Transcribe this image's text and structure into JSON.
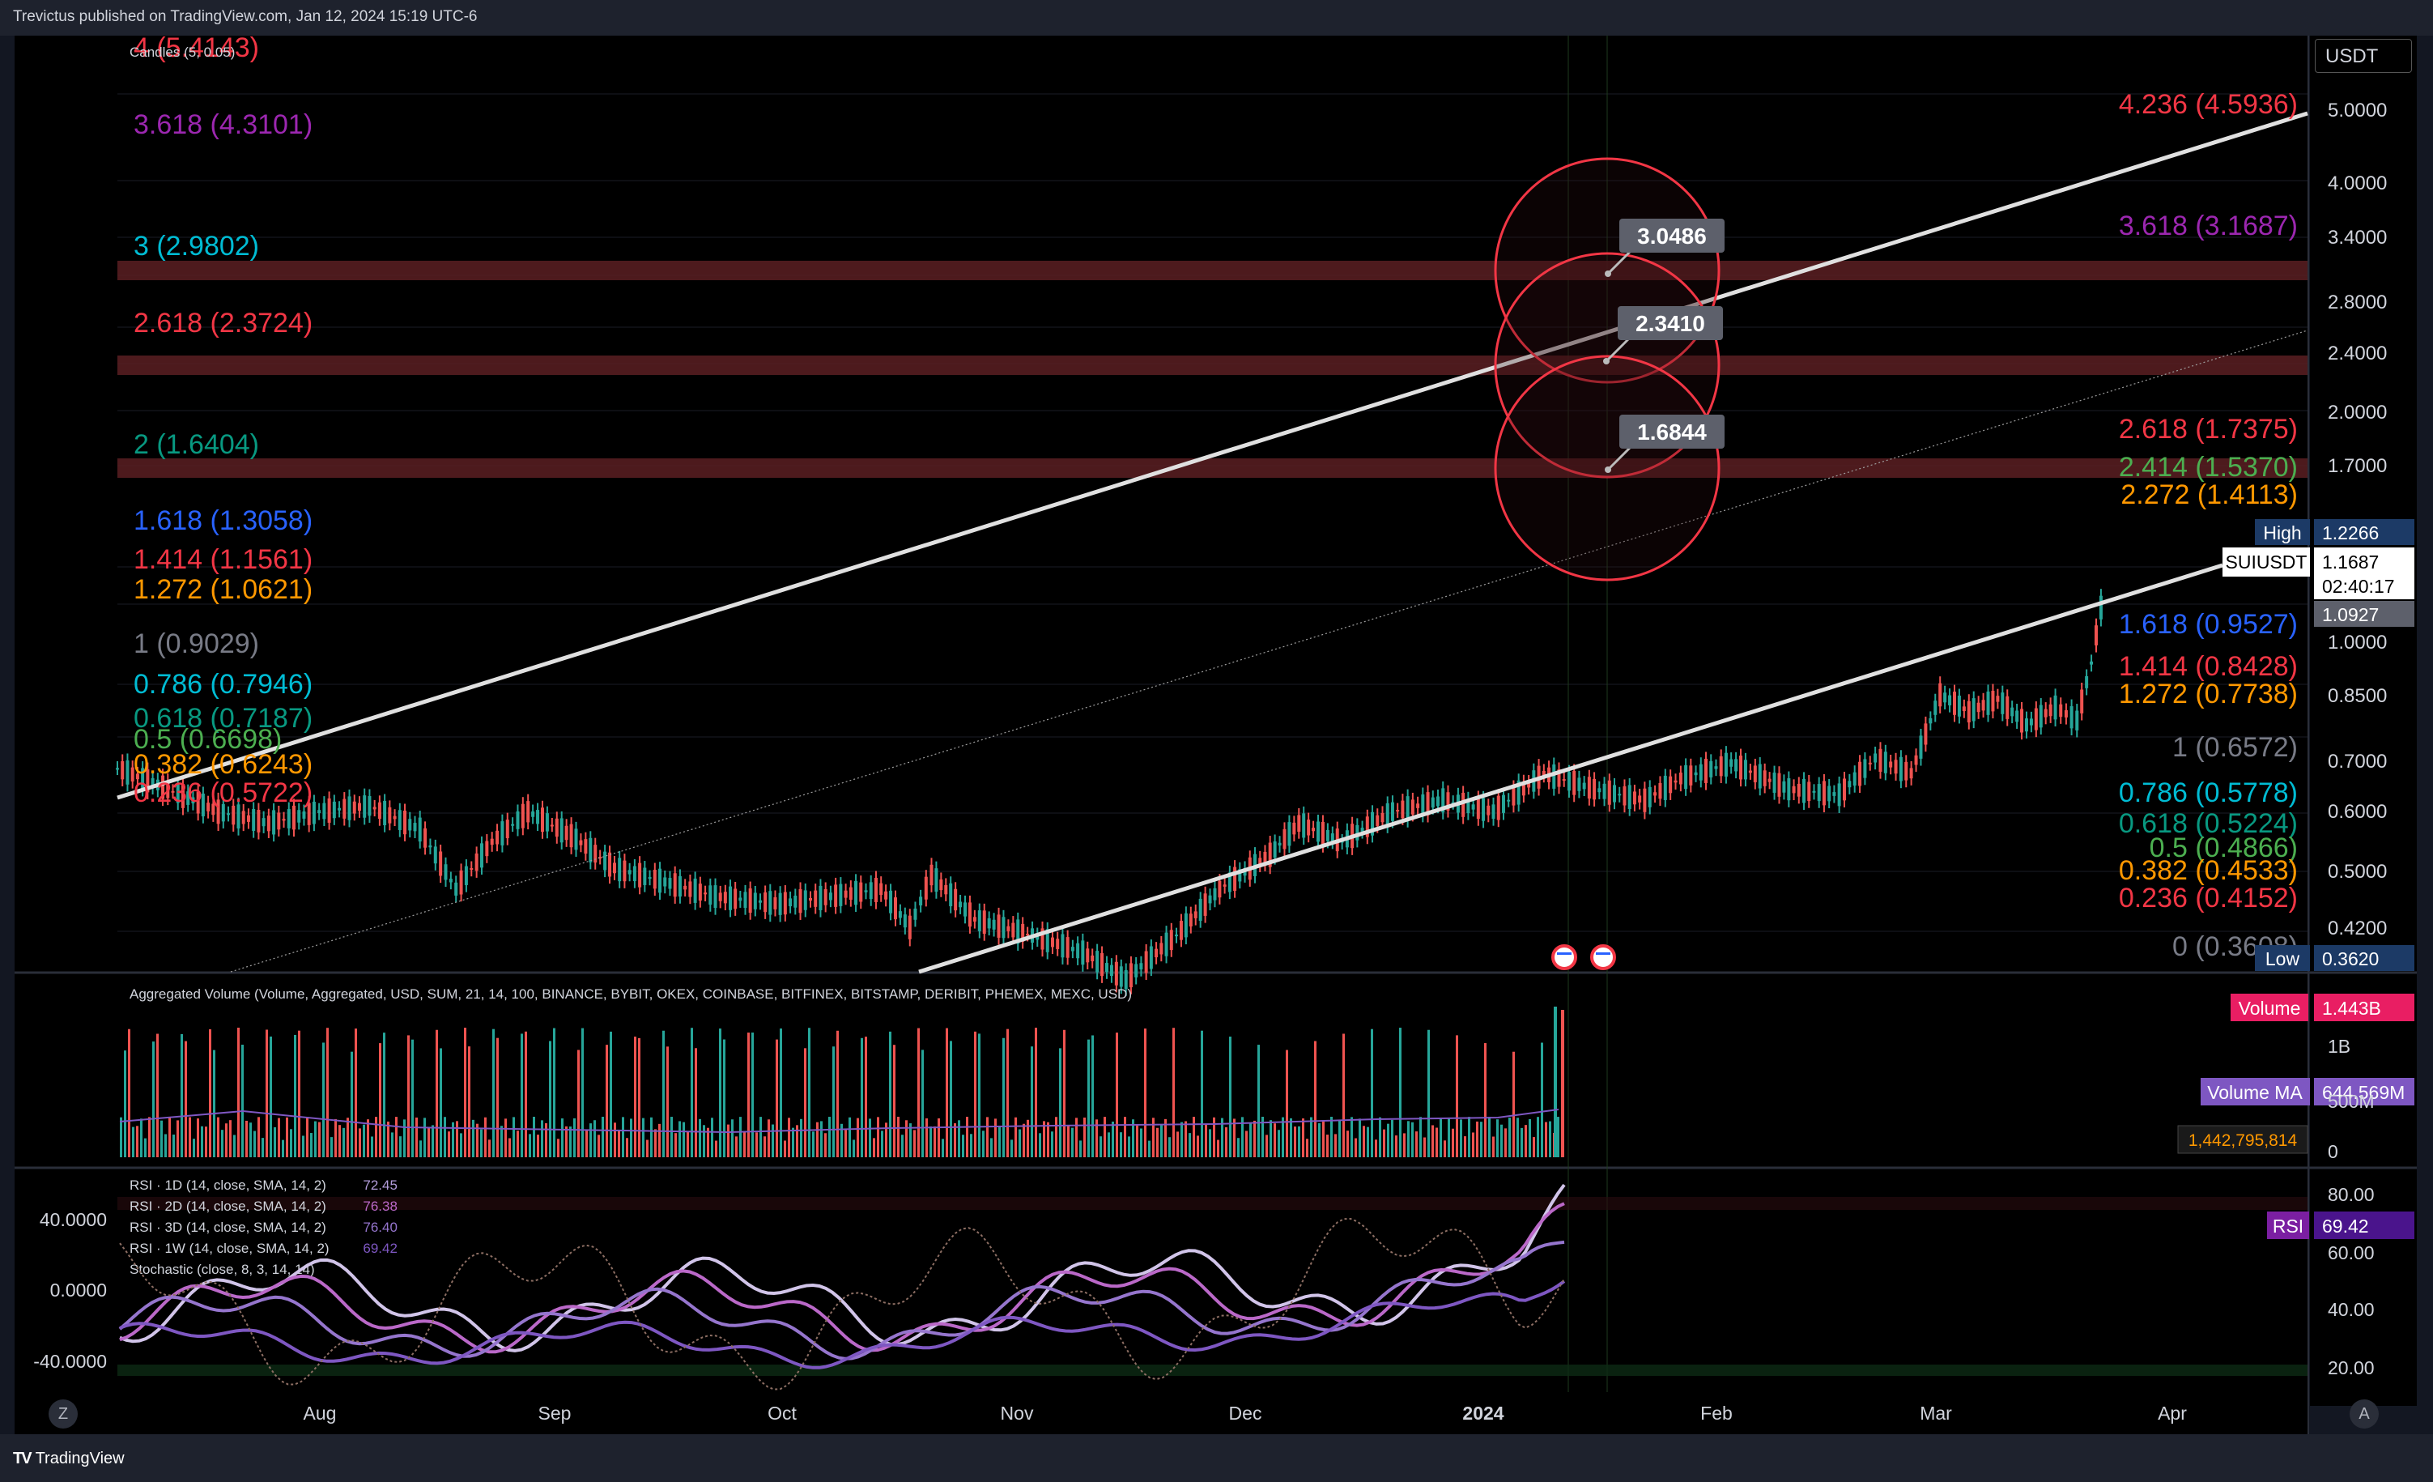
{
  "header": {
    "text": "Trevictus published on TradingView.com, Jan 12, 2024 15:19 UTC-6"
  },
  "footer": {
    "brand": "TradingView",
    "logo": "TV"
  },
  "price_scale": {
    "currency": "USDT"
  },
  "price_ticks": [
    "5.0000",
    "4.0000",
    "3.4000",
    "2.8000",
    "2.4000",
    "2.0000",
    "1.7000",
    "1.0000",
    "0.8500",
    "0.7000",
    "0.6000",
    "0.5000",
    "0.4200"
  ],
  "badges": {
    "high_label": "High",
    "high_value": "1.2266",
    "symbol": "SUIUSDT",
    "last_price": "1.1687",
    "countdown": "02:40:17",
    "prev_value": "1.0927",
    "low_label": "Low",
    "low_value": "0.3620"
  },
  "candles_legend": "Candles (5, 0.05)",
  "left_fib": [
    {
      "text": "4 (5.4143)",
      "color": "#f23645"
    },
    {
      "text": "3.618 (4.3101)",
      "color": "#9c27b0"
    },
    {
      "text": "3 (2.9802)",
      "color": "#00bcd4"
    },
    {
      "text": "2.618 (2.3724)",
      "color": "#f23645"
    },
    {
      "text": "2 (1.6404)",
      "color": "#089981"
    },
    {
      "text": "1.618 (1.3058)",
      "color": "#2962ff"
    },
    {
      "text": "1.414 (1.1561)",
      "color": "#f23645"
    },
    {
      "text": "1.272 (1.0621)",
      "color": "#ff9800"
    },
    {
      "text": "1 (0.9029)",
      "color": "#787b86"
    },
    {
      "text": "0.786 (0.7946)",
      "color": "#00bcd4"
    },
    {
      "text": "0.618 (0.7187)",
      "color": "#089981"
    },
    {
      "text": "0.5 (0.6698)",
      "color": "#4caf50"
    },
    {
      "text": "0.382 (0.6243)",
      "color": "#ff9800"
    },
    {
      "text": "0.236 (0.5722)",
      "color": "#f23645"
    }
  ],
  "right_fib": [
    {
      "text": "4.236 (4.5936)",
      "color": "#f23645"
    },
    {
      "text": "3.618 (3.1687)",
      "color": "#9c27b0"
    },
    {
      "text": "2.618 (1.7375)",
      "color": "#f23645"
    },
    {
      "text": "2.414 (1.5370)",
      "color": "#4caf50"
    },
    {
      "text": "2.272 (1.4113)",
      "color": "#ff9800"
    },
    {
      "text": "1.618 (0.9527)",
      "color": "#2962ff"
    },
    {
      "text": "1.414 (0.8428)",
      "color": "#f23645"
    },
    {
      "text": "1.272 (0.7738)",
      "color": "#ff9800"
    },
    {
      "text": "1 (0.6572)",
      "color": "#787b86"
    },
    {
      "text": "0.786 (0.5778)",
      "color": "#00bcd4"
    },
    {
      "text": "0.618 (0.5224)",
      "color": "#089981"
    },
    {
      "text": "0.5 (0.4866)",
      "color": "#4caf50"
    },
    {
      "text": "0.382 (0.4533)",
      "color": "#ff9800"
    },
    {
      "text": "0.236 (0.4152)",
      "color": "#f23645"
    },
    {
      "text": "0 (0.3608)",
      "color": "#787b86"
    }
  ],
  "target_labels": [
    "3.0486",
    "2.3410",
    "1.6844"
  ],
  "volume": {
    "legend": "Aggregated Volume (Volume, Aggregated, USD, SUM, 21, 14, 100, BINANCE, BYBIT, OKEX, COINBASE, BITFINEX, BITSTAMP, DERIBIT, PHEMEX, MEXC, USD)",
    "volume_label": "Volume",
    "volume_value": "1.443B",
    "ma_label": "Volume MA",
    "ma_value": "644.569M",
    "exact_value": "1,442,795,814",
    "scale": [
      "1B",
      "500M",
      "0"
    ]
  },
  "rsi": {
    "legends": [
      {
        "text": "RSI · 1D (14, close, SMA, 14, 2)",
        "value": "72.45",
        "color": "#b39ddb"
      },
      {
        "text": "RSI · 2D (14, close, SMA, 14, 2)",
        "value": "76.38",
        "color": "#ba68c8"
      },
      {
        "text": "RSI · 3D (14, close, SMA, 14, 2)",
        "value": "76.40",
        "color": "#9575cd"
      },
      {
        "text": "RSI · 1W (14, close, SMA, 14, 2)",
        "value": "69.42",
        "color": "#7e57c2"
      },
      {
        "text": "Stochastic (close, 8, 3, 14, 14)",
        "value": "",
        "color": "#787b86"
      }
    ],
    "badge_label": "RSI",
    "badge_value": "69.42",
    "right_scale": [
      "80.00",
      "60.00",
      "40.00",
      "20.00"
    ],
    "left_scale": [
      "40.0000",
      "0.0000",
      "-40.0000"
    ]
  },
  "time_axis": [
    "Aug",
    "Sep",
    "Oct",
    "Nov",
    "Dec",
    "2024",
    "Feb",
    "Mar",
    "Apr"
  ],
  "corner_buttons": {
    "left": "Z",
    "right": "A"
  },
  "chart_data": {
    "type": "candlestick",
    "symbol": "SUIUSDT",
    "y_scale": "log",
    "ylim": [
      0.38,
      5.6
    ],
    "x_range": [
      "2023-07-01",
      "2024-04-30"
    ],
    "price_series": [
      [
        "2023-07-01",
        0.68
      ],
      [
        "2023-07-08",
        0.64
      ],
      [
        "2023-07-15",
        0.6
      ],
      [
        "2023-07-22",
        0.58
      ],
      [
        "2023-07-29",
        0.6
      ],
      [
        "2023-08-05",
        0.61
      ],
      [
        "2023-08-12",
        0.57
      ],
      [
        "2023-08-17",
        0.48
      ],
      [
        "2023-08-22",
        0.55
      ],
      [
        "2023-08-27",
        0.6
      ],
      [
        "2023-09-02",
        0.56
      ],
      [
        "2023-09-08",
        0.51
      ],
      [
        "2023-09-15",
        0.49
      ],
      [
        "2023-09-22",
        0.47
      ],
      [
        "2023-10-01",
        0.46
      ],
      [
        "2023-10-08",
        0.47
      ],
      [
        "2023-10-15",
        0.48
      ],
      [
        "2023-10-19",
        0.43
      ],
      [
        "2023-10-22",
        0.5
      ],
      [
        "2023-10-28",
        0.44
      ],
      [
        "2023-11-05",
        0.42
      ],
      [
        "2023-11-12",
        0.4
      ],
      [
        "2023-11-18",
        0.37
      ],
      [
        "2023-11-25",
        0.42
      ],
      [
        "2023-12-01",
        0.48
      ],
      [
        "2023-12-08",
        0.53
      ],
      [
        "2023-12-12",
        0.58
      ],
      [
        "2023-12-18",
        0.55
      ],
      [
        "2023-12-25",
        0.6
      ],
      [
        "2024-01-01",
        0.62
      ],
      [
        "2024-01-08",
        0.6
      ],
      [
        "2024-01-15",
        0.67
      ],
      [
        "2024-01-22",
        0.64
      ],
      [
        "2024-01-29",
        0.62
      ],
      [
        "2024-02-03",
        0.66
      ],
      [
        "2024-02-10",
        0.69
      ],
      [
        "2024-02-18",
        0.64
      ],
      [
        "2024-02-25",
        0.63
      ],
      [
        "2024-03-01",
        0.7
      ],
      [
        "2024-03-06",
        0.67
      ],
      [
        "2024-03-10",
        0.84
      ],
      [
        "2024-03-14",
        0.8
      ],
      [
        "2024-03-18",
        0.83
      ],
      [
        "2024-03-22",
        0.77
      ],
      [
        "2024-03-26",
        0.81
      ],
      [
        "2024-03-29",
        0.78
      ],
      [
        "2024-03-31",
        0.92
      ],
      [
        "2024-04-02",
        1.17
      ]
    ],
    "horizontal_zones": [
      3.0486,
      2.341,
      1.6844
    ],
    "channel_upper": [
      [
        "2023-07-01",
        0.58
      ],
      [
        "2024-04-30",
        5.5
      ]
    ],
    "channel_lower": [
      [
        "2023-11-18",
        0.37
      ],
      [
        "2024-04-12",
        1.22
      ]
    ],
    "channel_mid": [
      [
        "2023-07-01",
        0.33
      ],
      [
        "2024-04-30",
        2.55
      ]
    ]
  }
}
